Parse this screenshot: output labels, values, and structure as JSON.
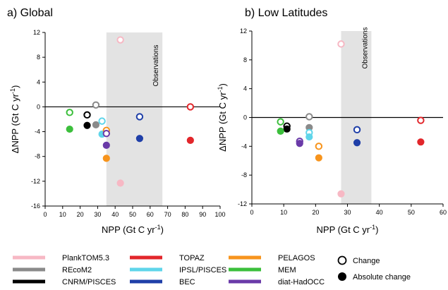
{
  "chart_data": [
    {
      "type": "scatter",
      "title": "a) Global",
      "xlabel": "NPP  (Gt C yr⁻¹)",
      "ylabel": "ΔNPP  (Gt C yr⁻¹)",
      "xlim": [
        0,
        100
      ],
      "ylim": [
        -16,
        12
      ],
      "xticks": [
        0,
        10,
        20,
        30,
        40,
        50,
        60,
        70,
        80,
        90,
        100
      ],
      "yticks": [
        12,
        8,
        4,
        0,
        -4,
        -8,
        -12,
        -16
      ],
      "observations": {
        "label": "Observations",
        "x_range": [
          35,
          67
        ]
      },
      "zero_line": true,
      "series": [
        {
          "model": "PlankTOM5.3",
          "change": [
            43,
            10.8
          ],
          "absolute_change": [
            43,
            -12.3
          ]
        },
        {
          "model": "REcoM2",
          "change": [
            29,
            0.3
          ],
          "absolute_change": [
            29,
            -2.9
          ]
        },
        {
          "model": "CNRM/PISCES",
          "change": [
            24,
            -1.3
          ],
          "absolute_change": [
            24,
            -3.0
          ]
        },
        {
          "model": "TOPAZ",
          "change": [
            83,
            0
          ],
          "absolute_change": [
            83,
            -5.4
          ]
        },
        {
          "model": "IPSL/PISCES",
          "change": [
            32.5,
            -2.3
          ],
          "absolute_change": [
            32.5,
            -4.4
          ]
        },
        {
          "model": "BEC",
          "change": [
            54,
            -1.6
          ],
          "absolute_change": [
            54,
            -5.1
          ]
        },
        {
          "model": "PELAGOS",
          "change": [
            35,
            -3.8
          ],
          "absolute_change": [
            35,
            -8.3
          ]
        },
        {
          "model": "MEM",
          "change": [
            14,
            -0.9
          ],
          "absolute_change": [
            14,
            -3.6
          ]
        },
        {
          "model": "diat-HadOCC",
          "change": [
            35,
            -4.3
          ],
          "absolute_change": [
            35,
            -6.2
          ]
        }
      ]
    },
    {
      "type": "scatter",
      "title": "b) Low Latitudes",
      "xlabel": "NPP  (Gt C yr⁻¹)",
      "ylabel": "ΔNPP  (Gt C yr⁻¹)",
      "xlim": [
        0,
        60
      ],
      "ylim": [
        -12,
        12
      ],
      "xticks": [
        0,
        10,
        20,
        30,
        40,
        50,
        60
      ],
      "yticks": [
        12,
        8,
        4,
        0,
        -4,
        -8,
        -12
      ],
      "observations": {
        "label": "Observations",
        "x_range": [
          28,
          37.5
        ]
      },
      "zero_line": true,
      "series": [
        {
          "model": "PlankTOM5.3",
          "change": [
            28,
            10.2
          ],
          "absolute_change": [
            28,
            -10.6
          ]
        },
        {
          "model": "REcoM2",
          "change": [
            18,
            0.1
          ],
          "absolute_change": [
            18,
            -1.4
          ]
        },
        {
          "model": "CNRM/PISCES",
          "change": [
            11,
            -1.2
          ],
          "absolute_change": [
            11,
            -1.6
          ]
        },
        {
          "model": "TOPAZ",
          "change": [
            53,
            -0.4
          ],
          "absolute_change": [
            53,
            -3.4
          ]
        },
        {
          "model": "IPSL/PISCES",
          "change": [
            18,
            -2.1
          ],
          "absolute_change": [
            18,
            -2.7
          ]
        },
        {
          "model": "BEC",
          "change": [
            33,
            -1.7
          ],
          "absolute_change": [
            33,
            -3.5
          ]
        },
        {
          "model": "PELAGOS",
          "change": [
            21,
            -4.0
          ],
          "absolute_change": [
            21,
            -5.6
          ]
        },
        {
          "model": "MEM",
          "change": [
            9,
            -0.6
          ],
          "absolute_change": [
            9,
            -1.9
          ]
        },
        {
          "model": "diat-HadOCC",
          "change": [
            15,
            -3.3
          ],
          "absolute_change": [
            15,
            -3.6
          ]
        }
      ]
    }
  ],
  "legend": {
    "models": [
      {
        "name": "PlankTOM5.3",
        "color": "#f7b8c4"
      },
      {
        "name": "REcoM2",
        "color": "#8a8a8a"
      },
      {
        "name": "CNRM/PISCES",
        "color": "#000000"
      },
      {
        "name": "TOPAZ",
        "color": "#e2262b"
      },
      {
        "name": "IPSL/PISCES",
        "color": "#5fd5ea"
      },
      {
        "name": "BEC",
        "color": "#1f3fa8"
      },
      {
        "name": "PELAGOS",
        "color": "#f7941d"
      },
      {
        "name": "MEM",
        "color": "#3cbf3c"
      },
      {
        "name": "diat-HadOCC",
        "color": "#6a3aa8"
      }
    ],
    "markers": {
      "change": "Change",
      "absolute_change": "Absolute change"
    }
  }
}
